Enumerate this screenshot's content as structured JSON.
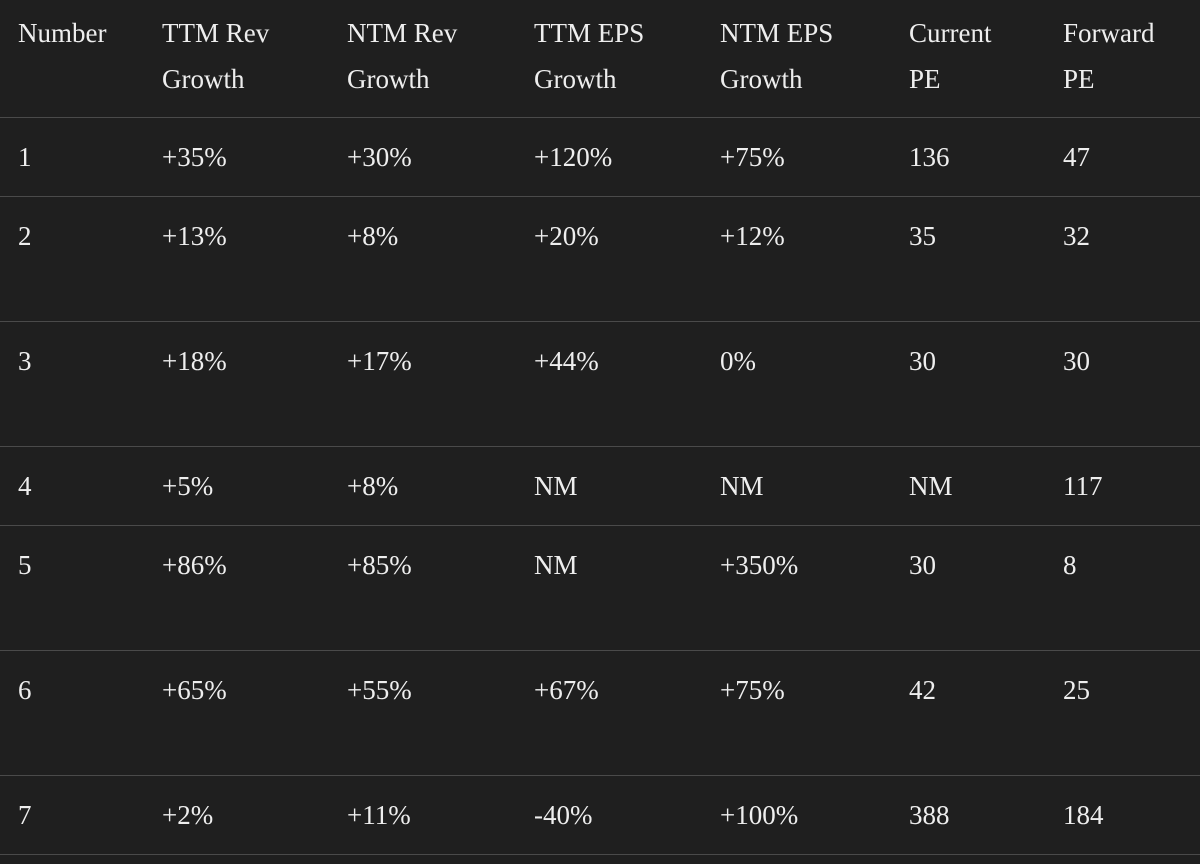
{
  "table": {
    "header": [
      [
        "Number"
      ],
      [
        "TTM Rev",
        "Growth"
      ],
      [
        "NTM Rev",
        "Growth"
      ],
      [
        "TTM EPS",
        "Growth"
      ],
      [
        "NTM EPS",
        "Growth"
      ],
      [
        "Current",
        "PE"
      ],
      [
        "Forward",
        "PE"
      ]
    ],
    "rows": [
      [
        "1",
        "+35%",
        "+30%",
        "+120%",
        "+75%",
        "136",
        "47"
      ],
      [
        "2",
        "+13%",
        "+8%",
        "+20%",
        "+12%",
        "35",
        "32"
      ],
      [
        "3",
        "+18%",
        "+17%",
        "+44%",
        "0%",
        "30",
        "30"
      ],
      [
        "4",
        "+5%",
        "+8%",
        "NM",
        "NM",
        "NM",
        "117"
      ],
      [
        "5",
        "+86%",
        "+85%",
        "NM",
        "+350%",
        "30",
        "8"
      ],
      [
        "6",
        "+65%",
        "+55%",
        "+67%",
        "+75%",
        "42",
        "25"
      ],
      [
        "7",
        "+2%",
        "+11%",
        "-40%",
        "+100%",
        "388",
        "184"
      ]
    ]
  }
}
